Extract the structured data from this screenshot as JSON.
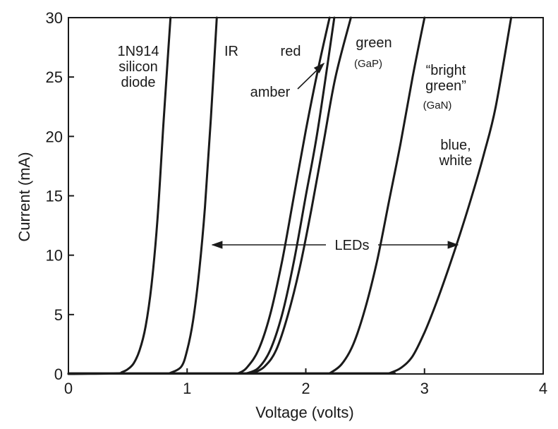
{
  "chart_data": {
    "type": "line",
    "title": "",
    "xlabel": "Voltage (volts)",
    "ylabel": "Current (mA)",
    "xlim": [
      0,
      4
    ],
    "ylim": [
      0,
      30
    ],
    "xticks": [
      0,
      1,
      2,
      3,
      4
    ],
    "yticks": [
      0,
      5,
      10,
      15,
      20,
      25,
      30
    ],
    "grid": false,
    "series": [
      {
        "name": "1N914 silicon diode",
        "x": [
          0,
          0.4,
          0.45,
          0.5,
          0.55,
          0.6,
          0.65,
          0.7,
          0.75,
          0.8,
          0.84,
          0.86
        ],
        "y": [
          0,
          0.05,
          0.15,
          0.4,
          0.9,
          2.0,
          4.0,
          7.5,
          13.0,
          21.0,
          27.0,
          30.0
        ]
      },
      {
        "name": "IR",
        "x": [
          0.85,
          0.95,
          1.0,
          1.05,
          1.1,
          1.15,
          1.2,
          1.25
        ],
        "y": [
          0.05,
          0.6,
          2.0,
          4.5,
          8.5,
          14.0,
          21.5,
          30.0
        ]
      },
      {
        "name": "red",
        "x": [
          1.43,
          1.5,
          1.6,
          1.7,
          1.8,
          1.9,
          2.0,
          2.1,
          2.2
        ],
        "y": [
          0.05,
          0.5,
          2.0,
          5.0,
          9.5,
          15.0,
          20.5,
          25.5,
          30.0
        ]
      },
      {
        "name": "amber",
        "x": [
          1.5,
          1.6,
          1.7,
          1.8,
          1.9,
          2.0,
          2.1,
          2.24
        ],
        "y": [
          0.05,
          0.5,
          2.0,
          5.0,
          9.5,
          15.0,
          20.5,
          30.0
        ]
      },
      {
        "name": "green (GaP)",
        "x": [
          1.55,
          1.65,
          1.75,
          1.85,
          1.95,
          2.05,
          2.15,
          2.25,
          2.38
        ],
        "y": [
          0.05,
          0.6,
          2.0,
          5.0,
          9.0,
          14.0,
          19.5,
          25.0,
          30.0
        ]
      },
      {
        "name": "“bright green” (GaN)",
        "x": [
          2.2,
          2.3,
          2.4,
          2.5,
          2.6,
          2.7,
          2.8,
          2.9,
          3.0
        ],
        "y": [
          0.05,
          0.8,
          2.5,
          5.5,
          9.5,
          14.5,
          19.5,
          25.0,
          30.0
        ]
      },
      {
        "name": "blue, white",
        "x": [
          2.7,
          2.8,
          2.9,
          3.0,
          3.1,
          3.2,
          3.3,
          3.4,
          3.5,
          3.6,
          3.73
        ],
        "y": [
          0.05,
          0.5,
          1.5,
          3.5,
          6.0,
          8.8,
          11.8,
          15.0,
          18.5,
          22.5,
          30.0
        ]
      }
    ],
    "annotations": [
      {
        "text": "LEDs",
        "x": 2.07,
        "y": 11
      }
    ],
    "labels": {
      "silicon": [
        "1N914",
        "silicon",
        "diode"
      ],
      "ir": "IR",
      "red": "red",
      "amber": "amber",
      "green": "green",
      "green_sub": "(GaP)",
      "bright_green": [
        "“bright",
        "green”"
      ],
      "bright_green_sub": "(GaN)",
      "blue_white": [
        "blue,",
        "white"
      ]
    }
  }
}
